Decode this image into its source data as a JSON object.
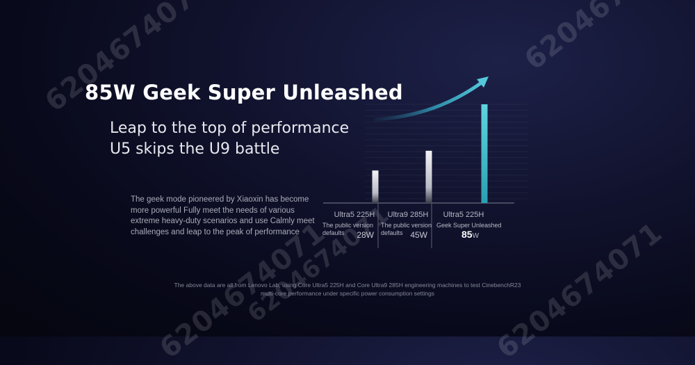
{
  "watermarks": [
    "6204674071",
    "6204674071",
    "6204674071",
    "6204674071",
    "6204674071"
  ],
  "headline": "85W Geek Super Unleashed",
  "subheadline_1": "Leap to the top of performance",
  "subheadline_2": "U5 skips the U9 battle",
  "description": "The geek mode pioneered by Xiaoxin has become more powerful Fully meet the needs of various extreme heavy-duty scenarios and use Calmly meet challenges and leap to the peak of performance",
  "footnote_1": "The above data are all from Lenovo Lab, using Core Ultra5 225H and Core Ultra9 285H engineering machines to test CinebenchR23",
  "footnote_2": "multi-core performance under specific power consumption settings",
  "colors": {
    "bar_white": "#e9e9ee",
    "bar_accent": "#4ec6d4",
    "arrow": "#3fa9c0"
  },
  "chart_data": {
    "type": "bar",
    "categories": [
      "Ultra5 225H",
      "Ultra9 285H",
      "Ultra5 225H"
    ],
    "category_notes": [
      "The public version defaults",
      "The public version defaults",
      "Geek Super Unleashed"
    ],
    "power_labels": [
      {
        "value": "28",
        "unit": "W"
      },
      {
        "value": "45",
        "unit": "W"
      },
      {
        "value": "85",
        "unit": "W"
      }
    ],
    "values": [
      28,
      45,
      85
    ],
    "highlight_index": 2,
    "trend_arrow": true,
    "grid": true
  }
}
